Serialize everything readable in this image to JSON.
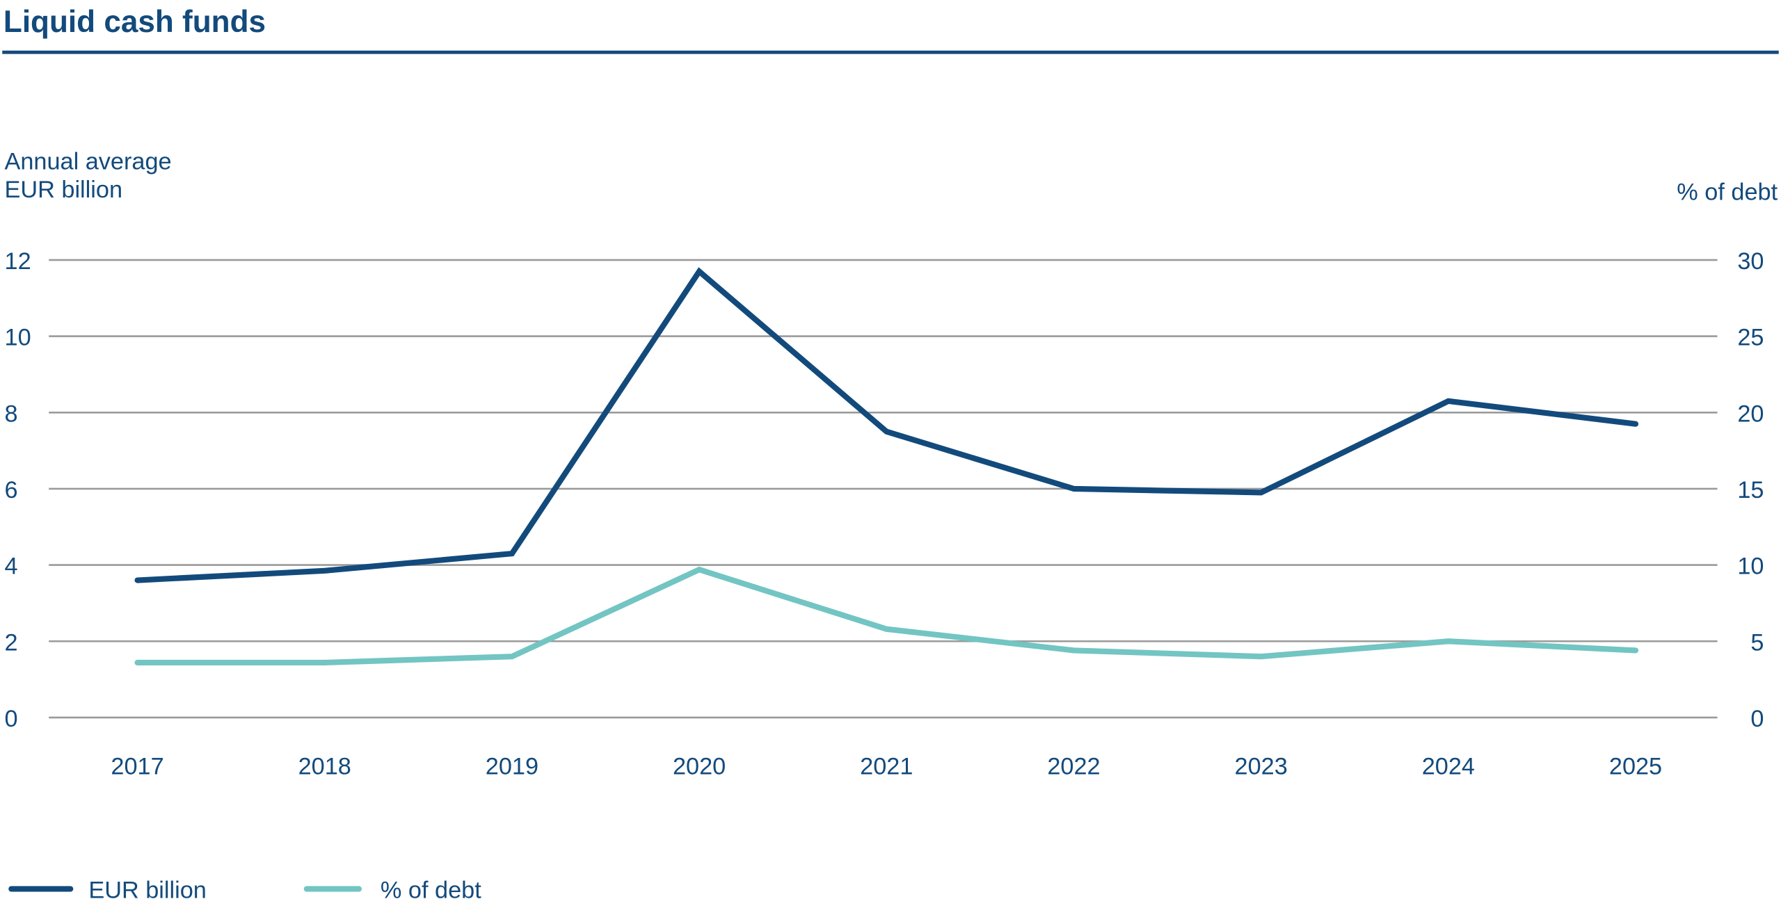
{
  "chart_data": {
    "type": "line",
    "title": "Liquid cash funds",
    "left_axis_label_line1": "Annual average",
    "left_axis_label_line2": "EUR billion",
    "right_axis_label": "% of debt",
    "categories": [
      "2017",
      "2018",
      "2019",
      "2020",
      "2021",
      "2022",
      "2023",
      "2024",
      "2025"
    ],
    "left_ticks": [
      "0",
      "2",
      "4",
      "6",
      "8",
      "10",
      "12"
    ],
    "right_ticks": [
      "0",
      "5",
      "10",
      "15",
      "20",
      "25",
      "30"
    ],
    "ylim_left": [
      0,
      12
    ],
    "ylim_right": [
      0,
      30
    ],
    "grid": true,
    "legend_position": "bottom-left",
    "series": [
      {
        "name": "EUR billion",
        "axis": "left",
        "color": "#134a7c",
        "values": [
          3.6,
          3.85,
          4.3,
          11.7,
          7.5,
          6.0,
          5.9,
          8.3,
          7.7
        ]
      },
      {
        "name": "% of debt",
        "axis": "right",
        "color": "#72c5c3",
        "values": [
          3.6,
          3.6,
          4.0,
          9.7,
          5.8,
          4.4,
          4.0,
          5.0,
          4.4
        ]
      }
    ]
  }
}
